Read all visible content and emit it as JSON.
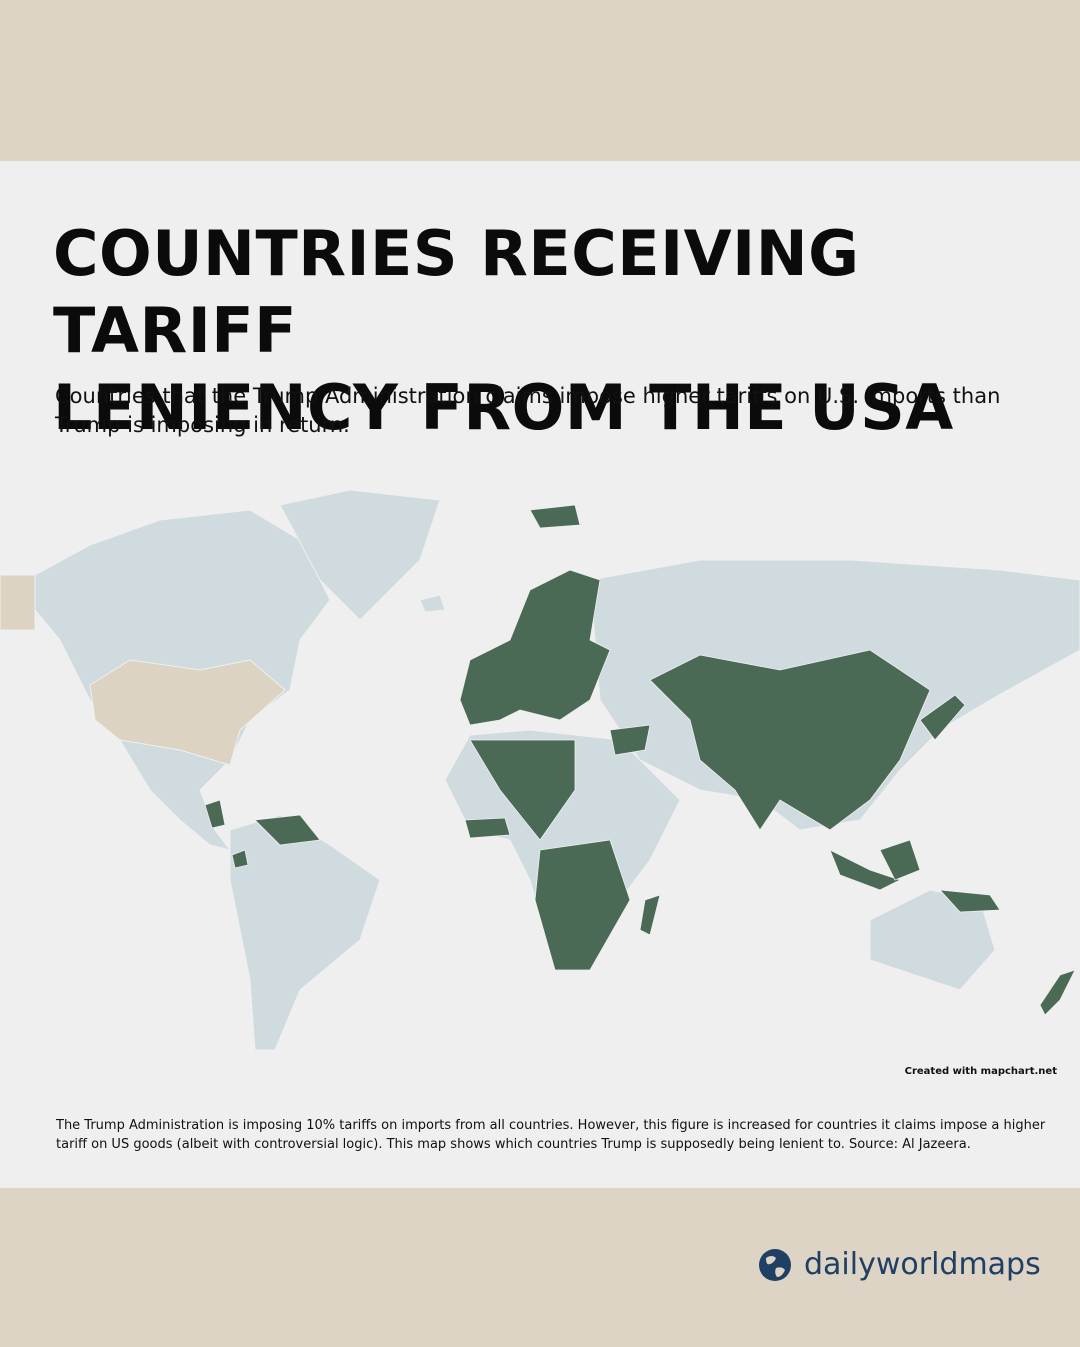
{
  "title_lines": [
    "COUNTRIES RECEIVING TARIFF",
    "LENIENCY FROM THE USA"
  ],
  "subtitle": "Countries that the Trump Administration claims impose higher tariffs on U.S. imports than Trump is imposing in return.",
  "credit": "Created with mapchart.net",
  "footnote": "The Trump Administration is imposing 10% tariffs on imports from all countries. However, this figure is increased for countries it claims impose a higher tariff on US goods (albeit with controversial logic). This map shows which countries Trump is supposedly being lenient to. Source: Al Jazeera.",
  "brand": "dailyworldmaps"
}
